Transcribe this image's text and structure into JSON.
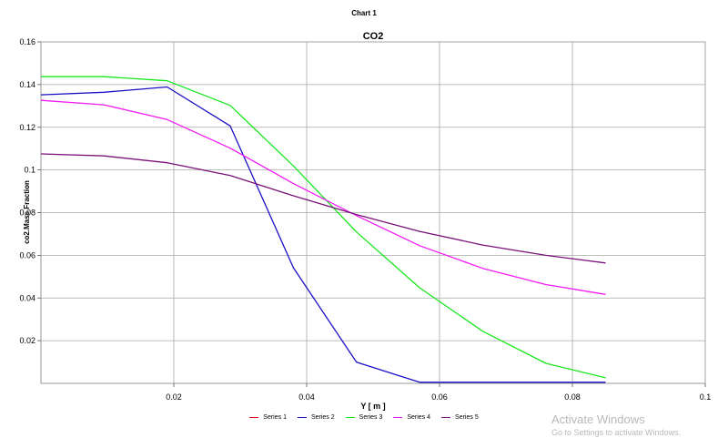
{
  "window": {
    "title": "Chart 1"
  },
  "watermark": {
    "title": "Activate Windows",
    "subtitle": "Go to Settings to activate Windows."
  },
  "chart_data": {
    "type": "line",
    "title": "CO2",
    "xlabel": "Y [ m ]",
    "ylabel": "co2.Mass Fraction",
    "xlim": [
      0,
      0.1
    ],
    "ylim": [
      0,
      0.16
    ],
    "xticks": [
      "0.02",
      "0.04",
      "0.06",
      "0.08",
      "0.1"
    ],
    "yticks": [
      "0.02",
      "0.04",
      "0.06",
      "0.08",
      "0.1",
      "0.12",
      "0.14",
      "0.16"
    ],
    "grid": true,
    "legend_position": "bottom",
    "series": [
      {
        "name": "Series 1",
        "color": "#e8001c",
        "x": [],
        "y": []
      },
      {
        "name": "Series 2",
        "color": "#1a0fc4",
        "x": [
          0,
          0.0095,
          0.019,
          0.0285,
          0.038,
          0.0475,
          0.057,
          0.0665,
          0.076,
          0.085
        ],
        "y": [
          0.1352,
          0.1364,
          0.1389,
          0.1206,
          0.0542,
          0.0099,
          0.0005,
          0.0005,
          0.0005,
          0.0005
        ]
      },
      {
        "name": "Series 3",
        "color": "#17e61c",
        "x": [
          0,
          0.0095,
          0.019,
          0.0285,
          0.038,
          0.0475,
          0.057,
          0.0665,
          0.076,
          0.085
        ],
        "y": [
          0.1437,
          0.1437,
          0.1418,
          0.1302,
          0.1019,
          0.0709,
          0.0448,
          0.0244,
          0.0094,
          0.0026
        ]
      },
      {
        "name": "Series 4",
        "color": "#f21cf2",
        "x": [
          0,
          0.0095,
          0.019,
          0.0285,
          0.038,
          0.0475,
          0.057,
          0.0665,
          0.076,
          0.085
        ],
        "y": [
          0.1326,
          0.1305,
          0.1236,
          0.1102,
          0.0936,
          0.0786,
          0.0645,
          0.0539,
          0.0463,
          0.0417
        ]
      },
      {
        "name": "Series 5",
        "color": "#7a117a",
        "x": [
          0,
          0.0095,
          0.019,
          0.0285,
          0.038,
          0.0475,
          0.057,
          0.0665,
          0.076,
          0.085
        ],
        "y": [
          0.1075,
          0.1066,
          0.1034,
          0.0974,
          0.0879,
          0.0791,
          0.0712,
          0.0648,
          0.06,
          0.0564
        ]
      }
    ]
  }
}
